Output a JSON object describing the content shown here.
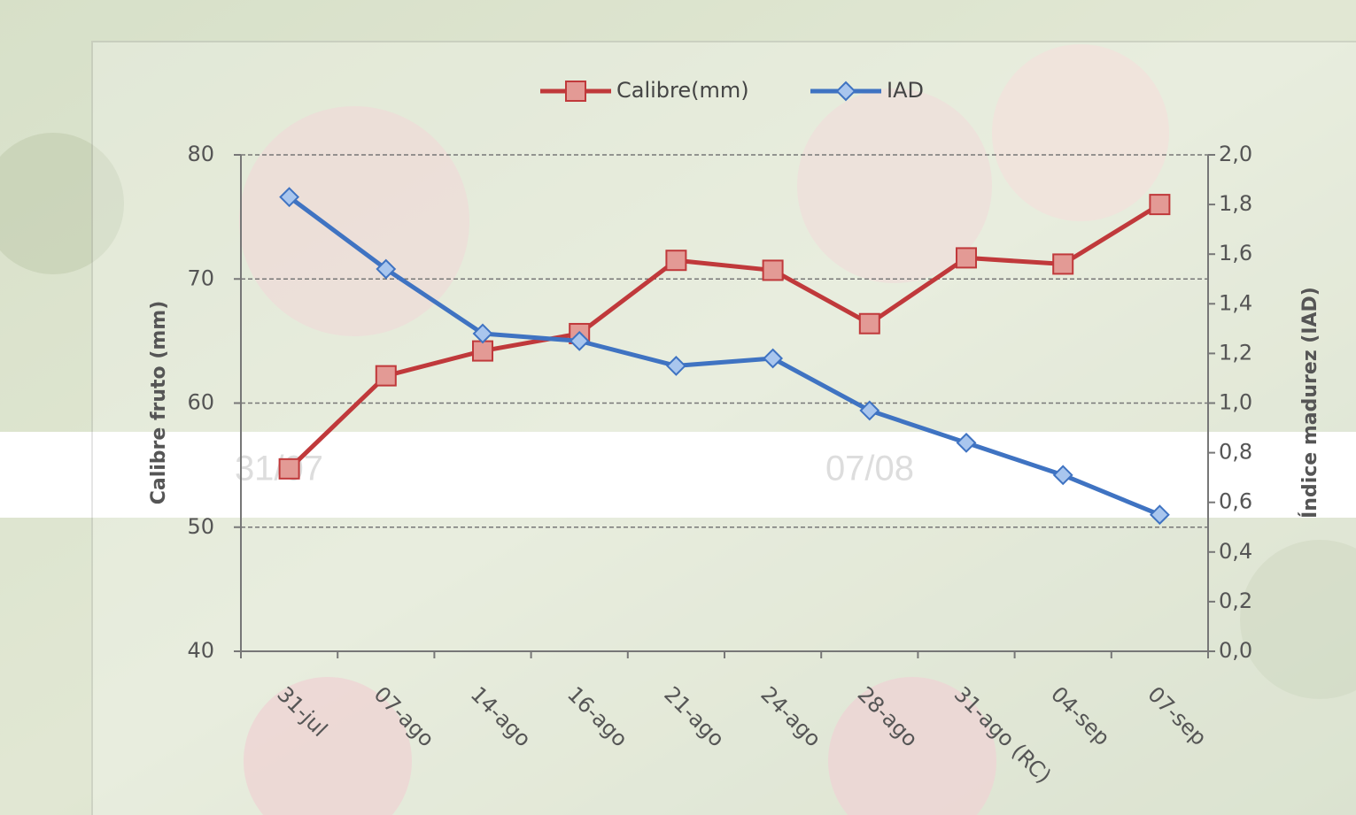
{
  "chart_data": {
    "type": "line",
    "categories": [
      "31-jul",
      "07-ago",
      "14-ago",
      "16-ago",
      "21-ago",
      "24-ago",
      "28-ago",
      "31-ago (RC)",
      "04-sep",
      "07-sep"
    ],
    "series": [
      {
        "name": "Calibre(mm)",
        "color": "#c0393b",
        "marker": "square",
        "values": [
          54.7,
          62.2,
          64.2,
          65.6,
          71.5,
          70.7,
          66.4,
          71.7,
          71.2,
          76.0
        ]
      },
      {
        "name": "IAD",
        "color": "#3f73c2",
        "marker": "diamond",
        "axis": "y2",
        "values": [
          1.83,
          1.54,
          1.28,
          1.25,
          1.15,
          1.18,
          0.97,
          0.84,
          0.71,
          0.55
        ]
      }
    ],
    "ylabel": "Calibre fruto (mm)",
    "y2label": "Índice madurez (IAD)",
    "ylim": [
      40,
      80
    ],
    "yticks": [
      40,
      50,
      60,
      70,
      80
    ],
    "y2lim": [
      0,
      2
    ],
    "y2ticks": [
      {
        "value": 0,
        "label": "0,0"
      },
      {
        "value": 0.2,
        "label": "0,2"
      },
      {
        "value": 0.4,
        "label": "0,4"
      },
      {
        "value": 0.6,
        "label": "0,6"
      },
      {
        "value": 0.8,
        "label": "0,8"
      },
      {
        "value": 1.0,
        "label": "1,0"
      },
      {
        "value": 1.2,
        "label": "1,2"
      },
      {
        "value": 1.4,
        "label": "1,4"
      },
      {
        "value": 1.6,
        "label": "1,6"
      },
      {
        "value": 1.8,
        "label": "1,8"
      },
      {
        "value": 2.0,
        "label": "2,0"
      }
    ],
    "grid": true,
    "legend": "top",
    "background_labels": [
      "31/07",
      "07/08"
    ]
  }
}
